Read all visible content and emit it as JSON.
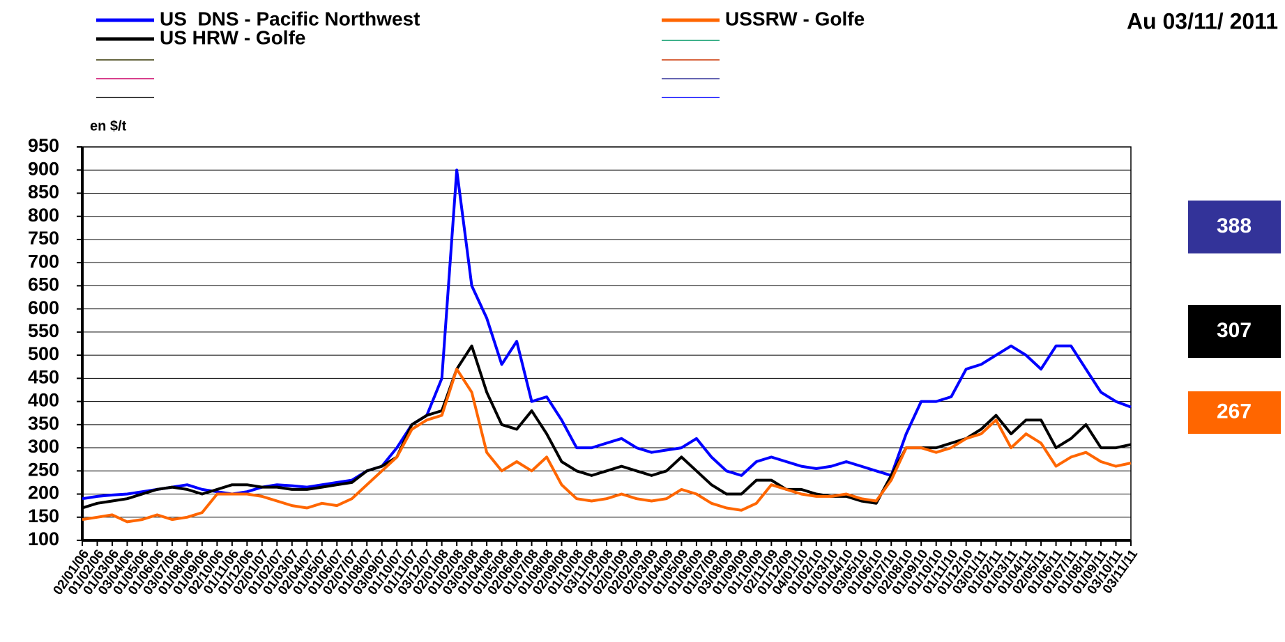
{
  "chart_data": {
    "type": "line",
    "title": "Au 03/11/ 2011",
    "y_label": "en $/t",
    "categories": [
      "02/01/06",
      "01/02/06",
      "01/03/06",
      "03/04/06",
      "01/05/06",
      "01/06/06",
      "03/07/06",
      "01/08/06",
      "01/09/06",
      "02/10/06",
      "01/11/06",
      "01/12/06",
      "02/01/07",
      "01/02/07",
      "01/03/07",
      "02/04/07",
      "01/05/07",
      "01/06/07",
      "02/07/07",
      "01/08/07",
      "03/09/07",
      "01/10/07",
      "01/11/07",
      "03/12/07",
      "02/01/08",
      "01/02/08",
      "03/03/08",
      "01/04/08",
      "01/05/08",
      "02/06/08",
      "01/07/08",
      "01/08/08",
      "02/09/08",
      "01/10/08",
      "03/11/08",
      "01/12/08",
      "02/01/09",
      "02/02/09",
      "02/03/09",
      "01/04/09",
      "01/05/09",
      "01/06/09",
      "01/07/09",
      "03/08/09",
      "01/09/09",
      "01/10/09",
      "02/11/09",
      "01/12/09",
      "04/01/10",
      "01/02/10",
      "01/03/10",
      "01/04/10",
      "03/05/10",
      "01/06/10",
      "01/07/10",
      "02/08/10",
      "01/09/10",
      "01/10/10",
      "01/11/10",
      "01/12/10",
      "03/01/11",
      "01/02/11",
      "01/03/11",
      "01/04/11",
      "02/05/11",
      "01/06/11",
      "01/07/11",
      "01/08/11",
      "01/09/11",
      "03/10/11",
      "03/11/11"
    ],
    "series": [
      {
        "name": "US  DNS - Pacific Northwest",
        "color": "#0000ff",
        "values": [
          190,
          195,
          198,
          200,
          205,
          210,
          215,
          220,
          210,
          205,
          200,
          205,
          215,
          220,
          218,
          215,
          220,
          225,
          230,
          250,
          260,
          300,
          350,
          370,
          450,
          900,
          650,
          580,
          480,
          530,
          400,
          410,
          360,
          300,
          300,
          310,
          320,
          300,
          290,
          295,
          300,
          320,
          280,
          250,
          240,
          270,
          280,
          270,
          260,
          255,
          260,
          270,
          260,
          250,
          240,
          330,
          400,
          400,
          410,
          470,
          480,
          500,
          520,
          500,
          470,
          520,
          520,
          470,
          420,
          400,
          388
        ]
      },
      {
        "name": "US HRW - Golfe",
        "color": "#000000",
        "values": [
          170,
          180,
          185,
          190,
          200,
          210,
          215,
          210,
          200,
          210,
          220,
          220,
          215,
          215,
          210,
          210,
          215,
          220,
          225,
          250,
          260,
          280,
          350,
          370,
          380,
          470,
          520,
          420,
          350,
          340,
          380,
          330,
          270,
          250,
          240,
          250,
          260,
          250,
          240,
          250,
          280,
          250,
          220,
          200,
          200,
          230,
          230,
          210,
          210,
          200,
          195,
          195,
          185,
          180,
          240,
          300,
          300,
          300,
          310,
          320,
          340,
          370,
          330,
          360,
          360,
          300,
          320,
          350,
          300,
          300,
          307
        ]
      },
      {
        "name": "USSRW - Golfe",
        "color": "#ff6600",
        "values": [
          145,
          150,
          155,
          140,
          145,
          155,
          145,
          150,
          160,
          200,
          200,
          200,
          195,
          185,
          175,
          170,
          180,
          175,
          190,
          220,
          250,
          280,
          340,
          360,
          370,
          470,
          420,
          290,
          250,
          270,
          250,
          280,
          220,
          190,
          185,
          190,
          200,
          190,
          185,
          190,
          210,
          200,
          180,
          170,
          165,
          180,
          220,
          210,
          200,
          195,
          195,
          200,
          190,
          185,
          230,
          300,
          300,
          290,
          300,
          320,
          330,
          360,
          300,
          330,
          310,
          260,
          280,
          290,
          270,
          260,
          267
        ]
      }
    ],
    "ylim": [
      100,
      950
    ],
    "yticks": [
      100,
      150,
      200,
      250,
      300,
      350,
      400,
      450,
      500,
      550,
      600,
      650,
      700,
      750,
      800,
      850,
      900,
      950
    ],
    "grid": true
  }
}
